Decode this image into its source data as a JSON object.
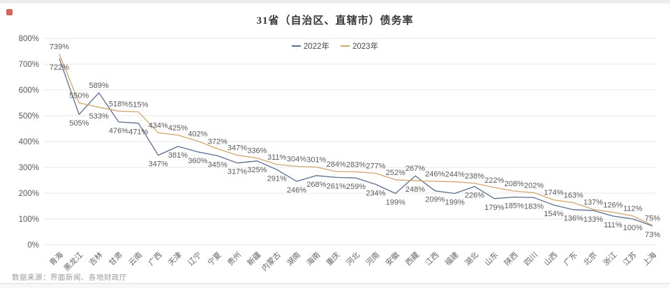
{
  "page": {
    "source_note": "数据来源：界面新闻、各地财政厅"
  },
  "chart_data": {
    "type": "line",
    "title": "31省（自治区、直辖市）债务率",
    "value_suffix": "%",
    "ylim": [
      0,
      800
    ],
    "y_ticks": [
      0,
      100,
      200,
      300,
      400,
      500,
      600,
      700,
      800
    ],
    "grid": true,
    "legend_position": "top",
    "categories": [
      "青海",
      "黑龙江",
      "吉林",
      "甘肃",
      "云南",
      "广西",
      "天津",
      "辽宁",
      "宁夏",
      "贵州",
      "新疆",
      "内蒙古",
      "湖南",
      "海南",
      "重庆",
      "河北",
      "河南",
      "安徽",
      "西藏",
      "江西",
      "福建",
      "湖北",
      "山东",
      "陕西",
      "四川",
      "山西",
      "广东",
      "北京",
      "浙江",
      "江苏",
      "上海"
    ],
    "series": [
      {
        "name": "2022年",
        "color": "#5b6e8c",
        "values": [
          722,
          505,
          589,
          476,
          471,
          347,
          381,
          360,
          345,
          317,
          325,
          291,
          246,
          268,
          261,
          259,
          234,
          199,
          267,
          209,
          199,
          226,
          179,
          185,
          183,
          154,
          136,
          133,
          111,
          100,
          73
        ]
      },
      {
        "name": "2023年",
        "color": "#d0a56e",
        "values": [
          739,
          550,
          533,
          518,
          515,
          434,
          425,
          402,
          372,
          347,
          336,
          311,
          304,
          301,
          284,
          283,
          277,
          252,
          248,
          246,
          244,
          238,
          222,
          208,
          202,
          174,
          163,
          137,
          126,
          112,
          75
        ]
      }
    ]
  }
}
